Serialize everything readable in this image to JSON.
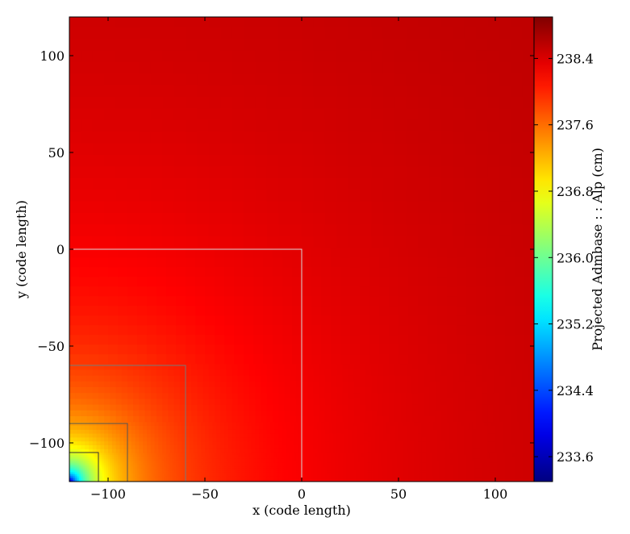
{
  "chart_data": {
    "type": "heatmap",
    "xlabel": "x  (code length)",
    "ylabel": "y  (code length)",
    "colorbar_label": "Projected Admbase : : Alp  (cm)",
    "xlim": [
      -120,
      120
    ],
    "ylim": [
      -120,
      120
    ],
    "xticks": [
      -100,
      -50,
      0,
      50,
      100
    ],
    "yticks": [
      -100,
      -50,
      0,
      50,
      100
    ],
    "xtick_labels": [
      "−100",
      "−50",
      "0",
      "50",
      "100"
    ],
    "ytick_labels": [
      "−100",
      "−50",
      "0",
      "50",
      "100"
    ],
    "colorbar": {
      "min": 233.3,
      "max": 238.9,
      "ticks": [
        233.6,
        234.4,
        235.2,
        236.0,
        236.8,
        237.6,
        238.4
      ],
      "tick_labels": [
        "233.6",
        "234.4",
        "235.2",
        "236.0",
        "236.8",
        "237.6",
        "238.4"
      ],
      "colormap": "jet"
    },
    "field": {
      "description_of_values": "lowest at corner (-120,-120), rising radially",
      "corner": [
        -120,
        -120
      ],
      "corner_value": 233.3,
      "far_value": 238.85
    },
    "refinement_boxes": [
      {
        "x0": -120,
        "y0": -120,
        "x1": 0,
        "y1": 0,
        "color": "#d8d8d8"
      },
      {
        "x0": -120,
        "y0": -120,
        "x1": -60,
        "y1": -60,
        "color": "#777777"
      },
      {
        "x0": -120,
        "y0": -120,
        "x1": -90,
        "y1": -90,
        "color": "#555555"
      },
      {
        "x0": -120,
        "y0": -120,
        "x1": -105,
        "y1": -105,
        "color": "#333333"
      }
    ],
    "grid": false
  }
}
